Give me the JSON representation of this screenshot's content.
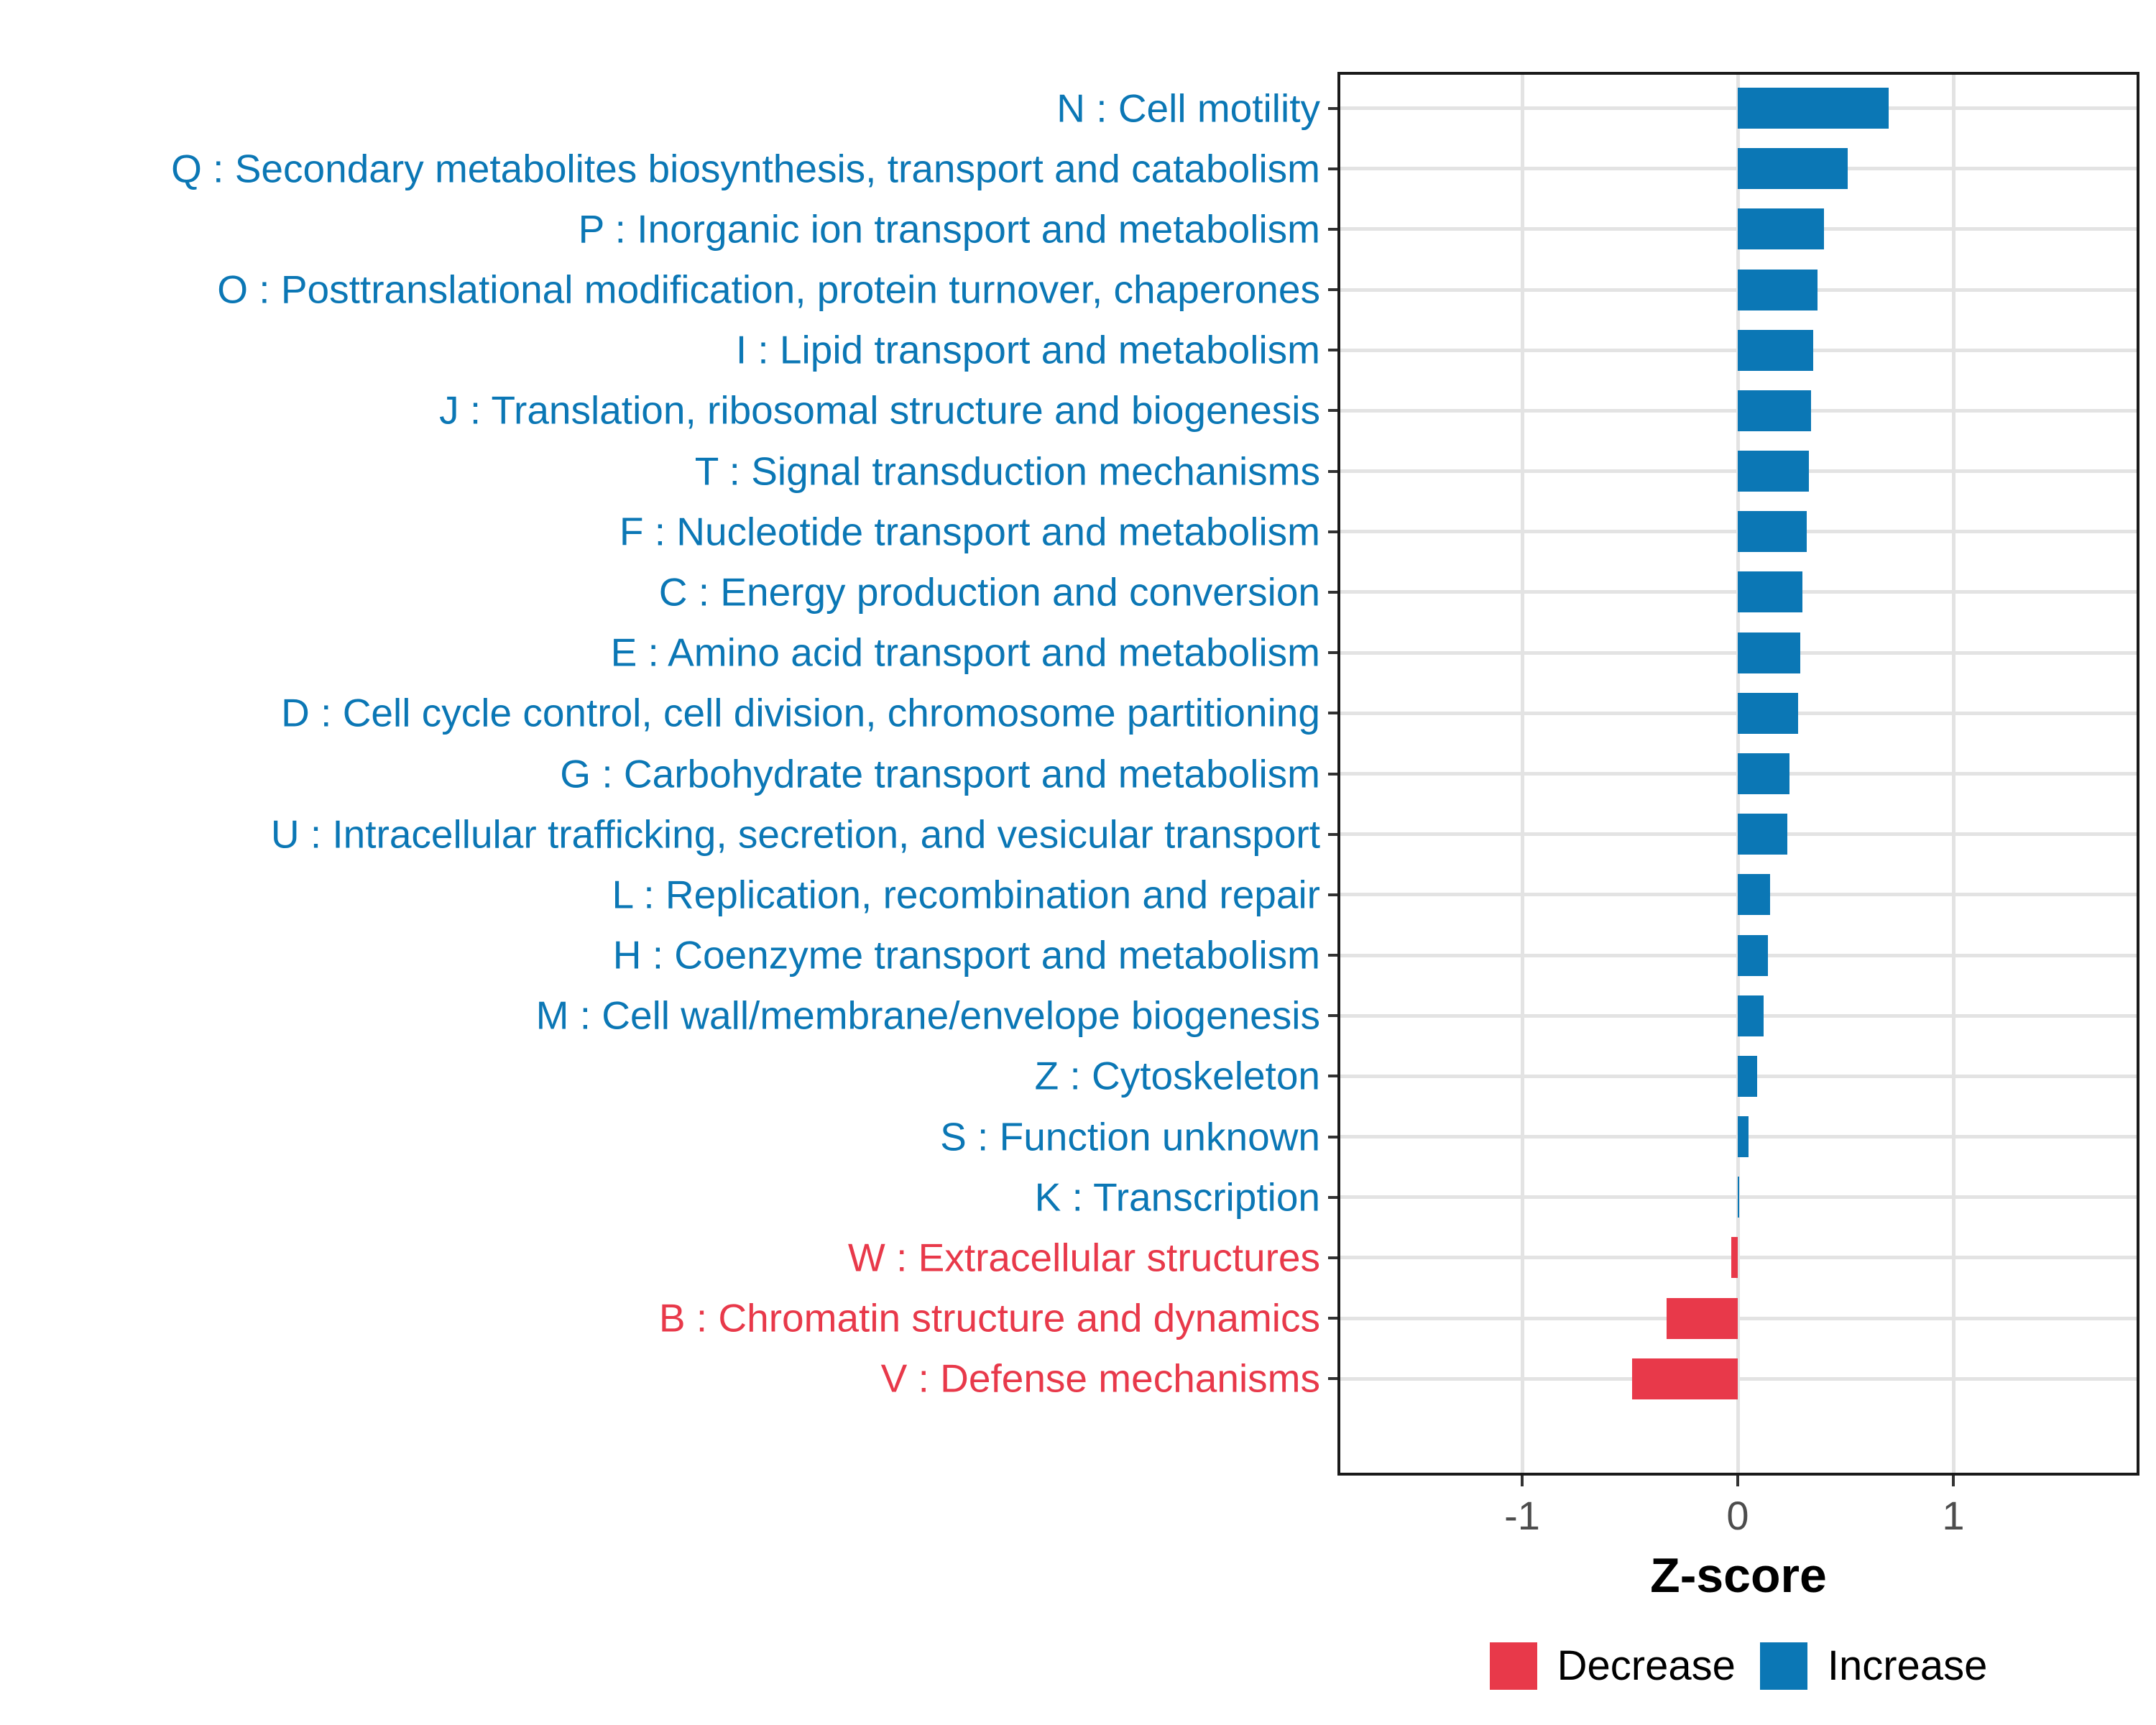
{
  "chart_data": {
    "type": "bar",
    "orientation": "horizontal",
    "xlabel": "Z-score",
    "x_ticks": [
      {
        "label": "-1",
        "value": -1
      },
      {
        "label": "0",
        "value": 0
      },
      {
        "label": "1",
        "value": 1
      }
    ],
    "xlim": [
      -1.86,
      1.86
    ],
    "grid": "major only, light gray, on x ticks and each category row",
    "legend_position": "bottom-center-under-panel",
    "colors": {
      "increase": "#0B77B5",
      "decrease": "#E8394A",
      "grid": "#E3E3E3",
      "axis_text": "#4D4D4D",
      "panel_border": "#1A1A1A",
      "tick": "#333333",
      "background": "#FFFFFF"
    },
    "legend": [
      {
        "key": "decrease",
        "label": "Decrease"
      },
      {
        "key": "increase",
        "label": "Increase"
      }
    ],
    "categories": [
      {
        "code": "N",
        "label": "N : Cell motility",
        "value": 0.7,
        "direction": "increase"
      },
      {
        "code": "Q",
        "label": "Q : Secondary metabolites biosynthesis, transport and catabolism",
        "value": 0.51,
        "direction": "increase"
      },
      {
        "code": "P",
        "label": "P : Inorganic ion transport and metabolism",
        "value": 0.4,
        "direction": "increase"
      },
      {
        "code": "O",
        "label": "O : Posttranslational modification, protein turnover, chaperones",
        "value": 0.37,
        "direction": "increase"
      },
      {
        "code": "I",
        "label": "I : Lipid transport and metabolism",
        "value": 0.35,
        "direction": "increase"
      },
      {
        "code": "J",
        "label": "J : Translation, ribosomal structure and biogenesis",
        "value": 0.34,
        "direction": "increase"
      },
      {
        "code": "T",
        "label": "T : Signal transduction mechanisms",
        "value": 0.33,
        "direction": "increase"
      },
      {
        "code": "F",
        "label": "F : Nucleotide transport and metabolism",
        "value": 0.32,
        "direction": "increase"
      },
      {
        "code": "C",
        "label": "C : Energy production and conversion",
        "value": 0.3,
        "direction": "increase"
      },
      {
        "code": "E",
        "label": "E : Amino acid transport and metabolism",
        "value": 0.29,
        "direction": "increase"
      },
      {
        "code": "D",
        "label": "D : Cell cycle control, cell division, chromosome partitioning",
        "value": 0.28,
        "direction": "increase"
      },
      {
        "code": "G",
        "label": "G : Carbohydrate transport and metabolism",
        "value": 0.24,
        "direction": "increase"
      },
      {
        "code": "U",
        "label": "U : Intracellular trafficking, secretion, and vesicular transport",
        "value": 0.23,
        "direction": "increase"
      },
      {
        "code": "L",
        "label": "L : Replication, recombination and repair",
        "value": 0.15,
        "direction": "increase"
      },
      {
        "code": "H",
        "label": "H : Coenzyme transport and metabolism",
        "value": 0.14,
        "direction": "increase"
      },
      {
        "code": "M",
        "label": "M : Cell wall/membrane/envelope biogenesis",
        "value": 0.12,
        "direction": "increase"
      },
      {
        "code": "Z",
        "label": "Z : Cytoskeleton",
        "value": 0.09,
        "direction": "increase"
      },
      {
        "code": "S",
        "label": "S : Function unknown",
        "value": 0.05,
        "direction": "increase"
      },
      {
        "code": "K",
        "label": "K : Transcription",
        "value": 0.005,
        "direction": "increase"
      },
      {
        "code": "W",
        "label": "W : Extracellular structures",
        "value": -0.03,
        "direction": "decrease"
      },
      {
        "code": "B",
        "label": "B : Chromatin structure and dynamics",
        "value": -0.33,
        "direction": "decrease"
      },
      {
        "code": "V",
        "label": "V : Defense mechanisms",
        "value": -0.49,
        "direction": "decrease"
      }
    ]
  }
}
